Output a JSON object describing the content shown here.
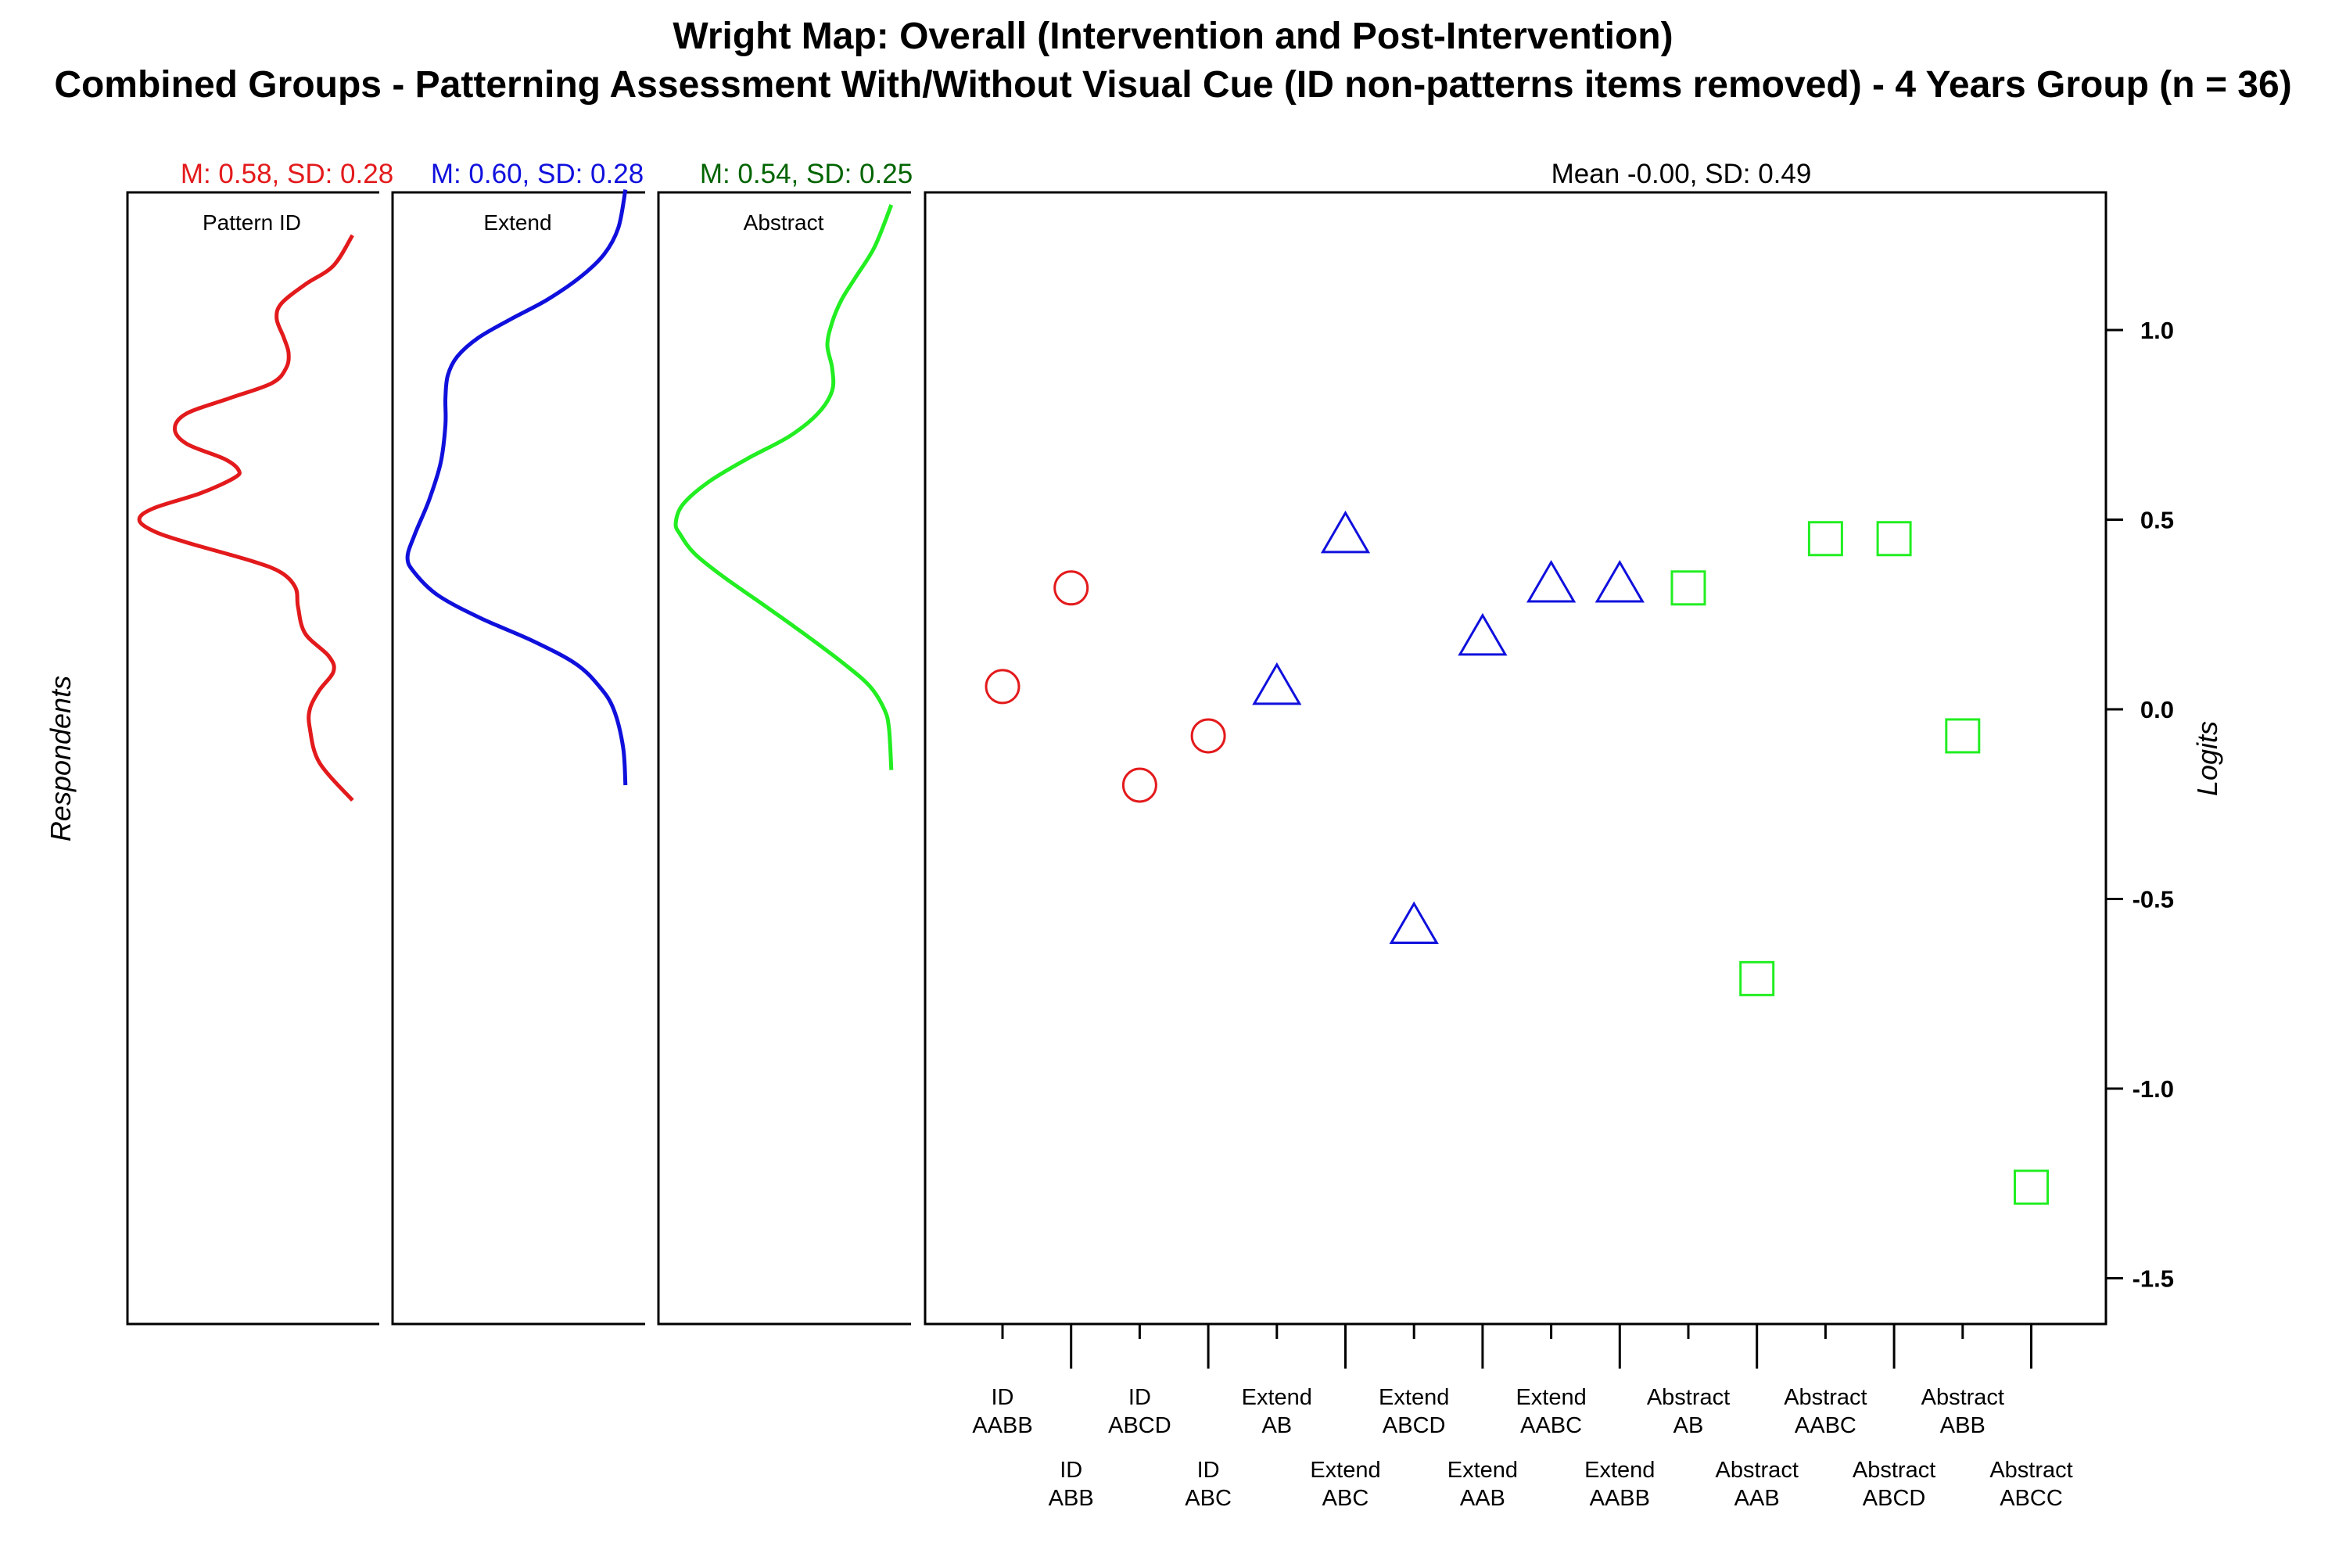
{
  "title_line1": "Wright Map: Overall (Intervention and Post-Intervention)",
  "title_line2": "Combined Groups - Patterning Assessment With/Without Visual Cue (ID non-patterns items removed) - 4 Years Group (n = 36)",
  "respondents_label": "Respondents",
  "logits_label": "Logits",
  "items_stat": "Mean -0.00, SD: 0.49",
  "colors": {
    "pattern_id": "#e31a1c",
    "extend": "#1010dd",
    "abstract": "#22ee22",
    "abstract_stat": "#006400"
  },
  "chart_data": {
    "type": "scatter",
    "ylim": [
      -1.75,
      1.35
    ],
    "y_ticks": [
      1.0,
      0.5,
      0.0,
      -0.5,
      -1.0,
      -1.5
    ],
    "y_tick_labels": [
      "1.0",
      "0.5",
      "0.0",
      "-0.5",
      "-1.0",
      "-1.5"
    ],
    "grid": false,
    "density_panels": [
      {
        "name": "Pattern ID",
        "stat": "M: 0.58, SD: 0.28",
        "color": "#e31a1c",
        "y_range": [
          -0.24,
          1.25
        ],
        "points": [
          [
            -0.24,
            0.92
          ],
          [
            -0.14,
            0.78
          ],
          [
            -0.05,
            0.74
          ],
          [
            0.0,
            0.74
          ],
          [
            0.05,
            0.78
          ],
          [
            0.1,
            0.84
          ],
          [
            0.14,
            0.82
          ],
          [
            0.2,
            0.72
          ],
          [
            0.27,
            0.69
          ],
          [
            0.32,
            0.68
          ],
          [
            0.36,
            0.62
          ],
          [
            0.39,
            0.5
          ],
          [
            0.44,
            0.22
          ],
          [
            0.47,
            0.08
          ],
          [
            0.5,
            0.02
          ],
          [
            0.53,
            0.08
          ],
          [
            0.57,
            0.28
          ],
          [
            0.61,
            0.42
          ],
          [
            0.63,
            0.44
          ],
          [
            0.66,
            0.38
          ],
          [
            0.7,
            0.22
          ],
          [
            0.74,
            0.17
          ],
          [
            0.78,
            0.22
          ],
          [
            0.82,
            0.4
          ],
          [
            0.86,
            0.58
          ],
          [
            0.9,
            0.64
          ],
          [
            0.94,
            0.65
          ],
          [
            0.98,
            0.63
          ],
          [
            1.03,
            0.6
          ],
          [
            1.07,
            0.62
          ],
          [
            1.12,
            0.72
          ],
          [
            1.17,
            0.84
          ],
          [
            1.25,
            0.92
          ]
        ]
      },
      {
        "name": "Extend",
        "stat": "M: 0.60, SD: 0.28",
        "color": "#1010dd",
        "y_range": [
          -0.2,
          1.37
        ],
        "points": [
          [
            -0.2,
            0.95
          ],
          [
            -0.1,
            0.94
          ],
          [
            0.0,
            0.9
          ],
          [
            0.06,
            0.84
          ],
          [
            0.12,
            0.74
          ],
          [
            0.18,
            0.56
          ],
          [
            0.24,
            0.34
          ],
          [
            0.3,
            0.16
          ],
          [
            0.36,
            0.06
          ],
          [
            0.4,
            0.03
          ],
          [
            0.46,
            0.06
          ],
          [
            0.55,
            0.12
          ],
          [
            0.65,
            0.17
          ],
          [
            0.75,
            0.19
          ],
          [
            0.82,
            0.19
          ],
          [
            0.88,
            0.2
          ],
          [
            0.93,
            0.24
          ],
          [
            0.98,
            0.33
          ],
          [
            1.03,
            0.47
          ],
          [
            1.08,
            0.62
          ],
          [
            1.14,
            0.76
          ],
          [
            1.2,
            0.86
          ],
          [
            1.27,
            0.92
          ],
          [
            1.37,
            0.95
          ]
        ]
      },
      {
        "name": "Abstract",
        "stat": "M: 0.54, SD: 0.25",
        "color": "#22ee22",
        "y_range": [
          -0.16,
          1.33
        ],
        "points": [
          [
            -0.16,
            0.95
          ],
          [
            -0.05,
            0.94
          ],
          [
            0.0,
            0.92
          ],
          [
            0.06,
            0.86
          ],
          [
            0.12,
            0.75
          ],
          [
            0.2,
            0.58
          ],
          [
            0.28,
            0.4
          ],
          [
            0.35,
            0.24
          ],
          [
            0.41,
            0.12
          ],
          [
            0.46,
            0.06
          ],
          [
            0.49,
            0.04
          ],
          [
            0.54,
            0.07
          ],
          [
            0.6,
            0.18
          ],
          [
            0.66,
            0.34
          ],
          [
            0.72,
            0.52
          ],
          [
            0.78,
            0.64
          ],
          [
            0.84,
            0.7
          ],
          [
            0.9,
            0.7
          ],
          [
            0.96,
            0.68
          ],
          [
            1.02,
            0.7
          ],
          [
            1.08,
            0.74
          ],
          [
            1.14,
            0.8
          ],
          [
            1.22,
            0.88
          ],
          [
            1.33,
            0.95
          ]
        ]
      }
    ],
    "items": [
      {
        "label": [
          "ID",
          "AABB"
        ],
        "group": "Pattern ID",
        "marker": "circle",
        "y": 0.06
      },
      {
        "label": [
          "ID",
          "ABB"
        ],
        "group": "Pattern ID",
        "marker": "circle",
        "y": 0.32
      },
      {
        "label": [
          "ID",
          "ABCD"
        ],
        "group": "Pattern ID",
        "marker": "circle",
        "y": -0.2
      },
      {
        "label": [
          "ID",
          "ABC"
        ],
        "group": "Pattern ID",
        "marker": "circle",
        "y": -0.07
      },
      {
        "label": [
          "Extend",
          "AB"
        ],
        "group": "Extend",
        "marker": "triangle",
        "y": 0.06
      },
      {
        "label": [
          "Extend",
          "ABC"
        ],
        "group": "Extend",
        "marker": "triangle",
        "y": 0.46
      },
      {
        "label": [
          "Extend",
          "ABCD"
        ],
        "group": "Extend",
        "marker": "triangle",
        "y": -0.57
      },
      {
        "label": [
          "Extend",
          "AAB"
        ],
        "group": "Extend",
        "marker": "triangle",
        "y": 0.19
      },
      {
        "label": [
          "Extend",
          "AABC"
        ],
        "group": "Extend",
        "marker": "triangle",
        "y": 0.33
      },
      {
        "label": [
          "Extend",
          "AABB"
        ],
        "group": "Extend",
        "marker": "triangle",
        "y": 0.33
      },
      {
        "label": [
          "Abstract",
          "AB"
        ],
        "group": "Abstract",
        "marker": "square",
        "y": 0.32
      },
      {
        "label": [
          "Abstract",
          "AAB"
        ],
        "group": "Abstract",
        "marker": "square",
        "y": -0.71
      },
      {
        "label": [
          "Abstract",
          "AABC"
        ],
        "group": "Abstract",
        "marker": "square",
        "y": 0.45
      },
      {
        "label": [
          "Abstract",
          "ABCD"
        ],
        "group": "Abstract",
        "marker": "square",
        "y": 0.45
      },
      {
        "label": [
          "Abstract",
          "ABB"
        ],
        "group": "Abstract",
        "marker": "square",
        "y": -0.07
      },
      {
        "label": [
          "Abstract",
          "ABCC"
        ],
        "group": "Abstract",
        "marker": "square",
        "y": -1.26
      }
    ]
  }
}
